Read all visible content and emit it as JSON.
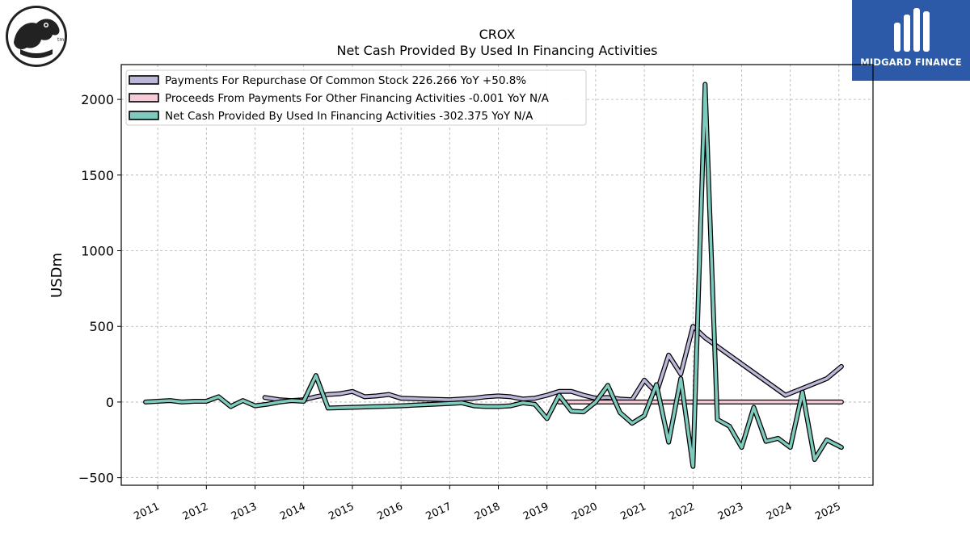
{
  "brand": {
    "left_logo_icon": "crocodile-logo-icon",
    "right_logo_icon": "midgard-logo-icon",
    "right_logo_text": "MIDGARD FINANCE",
    "right_logo_color": "#2c5aa8"
  },
  "chart_data": {
    "type": "line",
    "title": "CROX",
    "subtitle": "Net Cash Provided By Used In Financing Activities",
    "xlabel": "",
    "ylabel": "USDm",
    "ylim": [
      -550,
      2230
    ],
    "xlim": [
      2010.25,
      2025.7
    ],
    "grid": true,
    "legend_position": "top-left",
    "y_ticks": [
      -500,
      0,
      500,
      1000,
      1500,
      2000
    ],
    "y_tick_labels": [
      "−500",
      "0",
      "500",
      "1000",
      "1500",
      "2000"
    ],
    "x_ticks": [
      2011,
      2012,
      2013,
      2014,
      2015,
      2016,
      2017,
      2018,
      2019,
      2020,
      2021,
      2022,
      2023,
      2024,
      2025
    ],
    "x_tick_labels": [
      "2011",
      "2012",
      "2013",
      "2014",
      "2015",
      "2016",
      "2017",
      "2018",
      "2019",
      "2020",
      "2021",
      "2022",
      "2023",
      "2024",
      "2025"
    ],
    "series": [
      {
        "name": "Payments For Repurchase Of Common Stock",
        "legend_label": "Payments For Repurchase Of Common Stock  226.266 YoY +50.8%",
        "color": "#bcb7d9",
        "points": [
          [
            2013.2,
            30
          ],
          [
            2013.5,
            15
          ],
          [
            2013.75,
            10
          ],
          [
            2014.0,
            15
          ],
          [
            2014.25,
            35
          ],
          [
            2014.5,
            50
          ],
          [
            2014.75,
            55
          ],
          [
            2015.0,
            70
          ],
          [
            2015.25,
            35
          ],
          [
            2015.5,
            40
          ],
          [
            2015.75,
            50
          ],
          [
            2016.0,
            25
          ],
          [
            2016.5,
            20
          ],
          [
            2017.0,
            15
          ],
          [
            2017.5,
            25
          ],
          [
            2017.75,
            35
          ],
          [
            2018.0,
            40
          ],
          [
            2018.25,
            35
          ],
          [
            2018.5,
            20
          ],
          [
            2018.75,
            25
          ],
          [
            2019.0,
            45
          ],
          [
            2019.25,
            70
          ],
          [
            2019.5,
            70
          ],
          [
            2019.75,
            45
          ],
          [
            2020.0,
            25
          ],
          [
            2020.25,
            30
          ],
          [
            2020.5,
            20
          ],
          [
            2020.75,
            15
          ],
          [
            2021.0,
            145
          ],
          [
            2021.25,
            60
          ],
          [
            2021.5,
            310
          ],
          [
            2021.75,
            185
          ],
          [
            2022.0,
            500
          ],
          [
            2022.25,
            425
          ],
          [
            2023.9,
            45
          ],
          [
            2024.75,
            155
          ],
          [
            2025.05,
            235
          ]
        ]
      },
      {
        "name": "Proceeds From Payments For Other Financing Activities",
        "legend_label": "Proceeds From Payments For Other Financing Activities  -0.001 YoY N/A",
        "color": "#f5cbd8",
        "points": [
          [
            2019.25,
            0
          ],
          [
            2020.0,
            0
          ],
          [
            2021.0,
            0
          ],
          [
            2022.0,
            0
          ],
          [
            2023.0,
            0
          ],
          [
            2024.0,
            0
          ],
          [
            2025.05,
            0
          ]
        ]
      },
      {
        "name": "Net Cash Provided By Used In Financing Activities",
        "legend_label": "Net Cash Provided By Used In Financing Activities  -302.375 YoY N/A",
        "color": "#7ecbbd",
        "points": [
          [
            2010.75,
            0
          ],
          [
            2011.0,
            5
          ],
          [
            2011.25,
            10
          ],
          [
            2011.5,
            0
          ],
          [
            2011.75,
            5
          ],
          [
            2012.0,
            5
          ],
          [
            2012.25,
            35
          ],
          [
            2012.5,
            -30
          ],
          [
            2012.75,
            10
          ],
          [
            2013.0,
            -25
          ],
          [
            2013.25,
            -15
          ],
          [
            2013.5,
            0
          ],
          [
            2013.75,
            10
          ],
          [
            2014.0,
            5
          ],
          [
            2014.25,
            175
          ],
          [
            2014.5,
            -40
          ],
          [
            2015.0,
            -35
          ],
          [
            2016.0,
            -25
          ],
          [
            2017.0,
            -10
          ],
          [
            2017.25,
            -5
          ],
          [
            2017.5,
            -25
          ],
          [
            2017.75,
            -30
          ],
          [
            2018.0,
            -30
          ],
          [
            2018.25,
            -25
          ],
          [
            2018.5,
            -5
          ],
          [
            2018.75,
            -15
          ],
          [
            2019.0,
            -110
          ],
          [
            2019.25,
            45
          ],
          [
            2019.5,
            -60
          ],
          [
            2019.75,
            -65
          ],
          [
            2020.0,
            0
          ],
          [
            2020.25,
            110
          ],
          [
            2020.5,
            -70
          ],
          [
            2020.75,
            -140
          ],
          [
            2021.0,
            -90
          ],
          [
            2021.25,
            115
          ],
          [
            2021.5,
            -265
          ],
          [
            2021.75,
            155
          ],
          [
            2022.0,
            -425
          ],
          [
            2022.25,
            2100
          ],
          [
            2022.5,
            -115
          ],
          [
            2022.75,
            -160
          ],
          [
            2023.0,
            -300
          ],
          [
            2023.25,
            -35
          ],
          [
            2023.5,
            -260
          ],
          [
            2023.75,
            -240
          ],
          [
            2024.0,
            -300
          ],
          [
            2024.25,
            65
          ],
          [
            2024.5,
            -380
          ],
          [
            2024.75,
            -250
          ],
          [
            2025.05,
            -300
          ]
        ]
      }
    ]
  }
}
